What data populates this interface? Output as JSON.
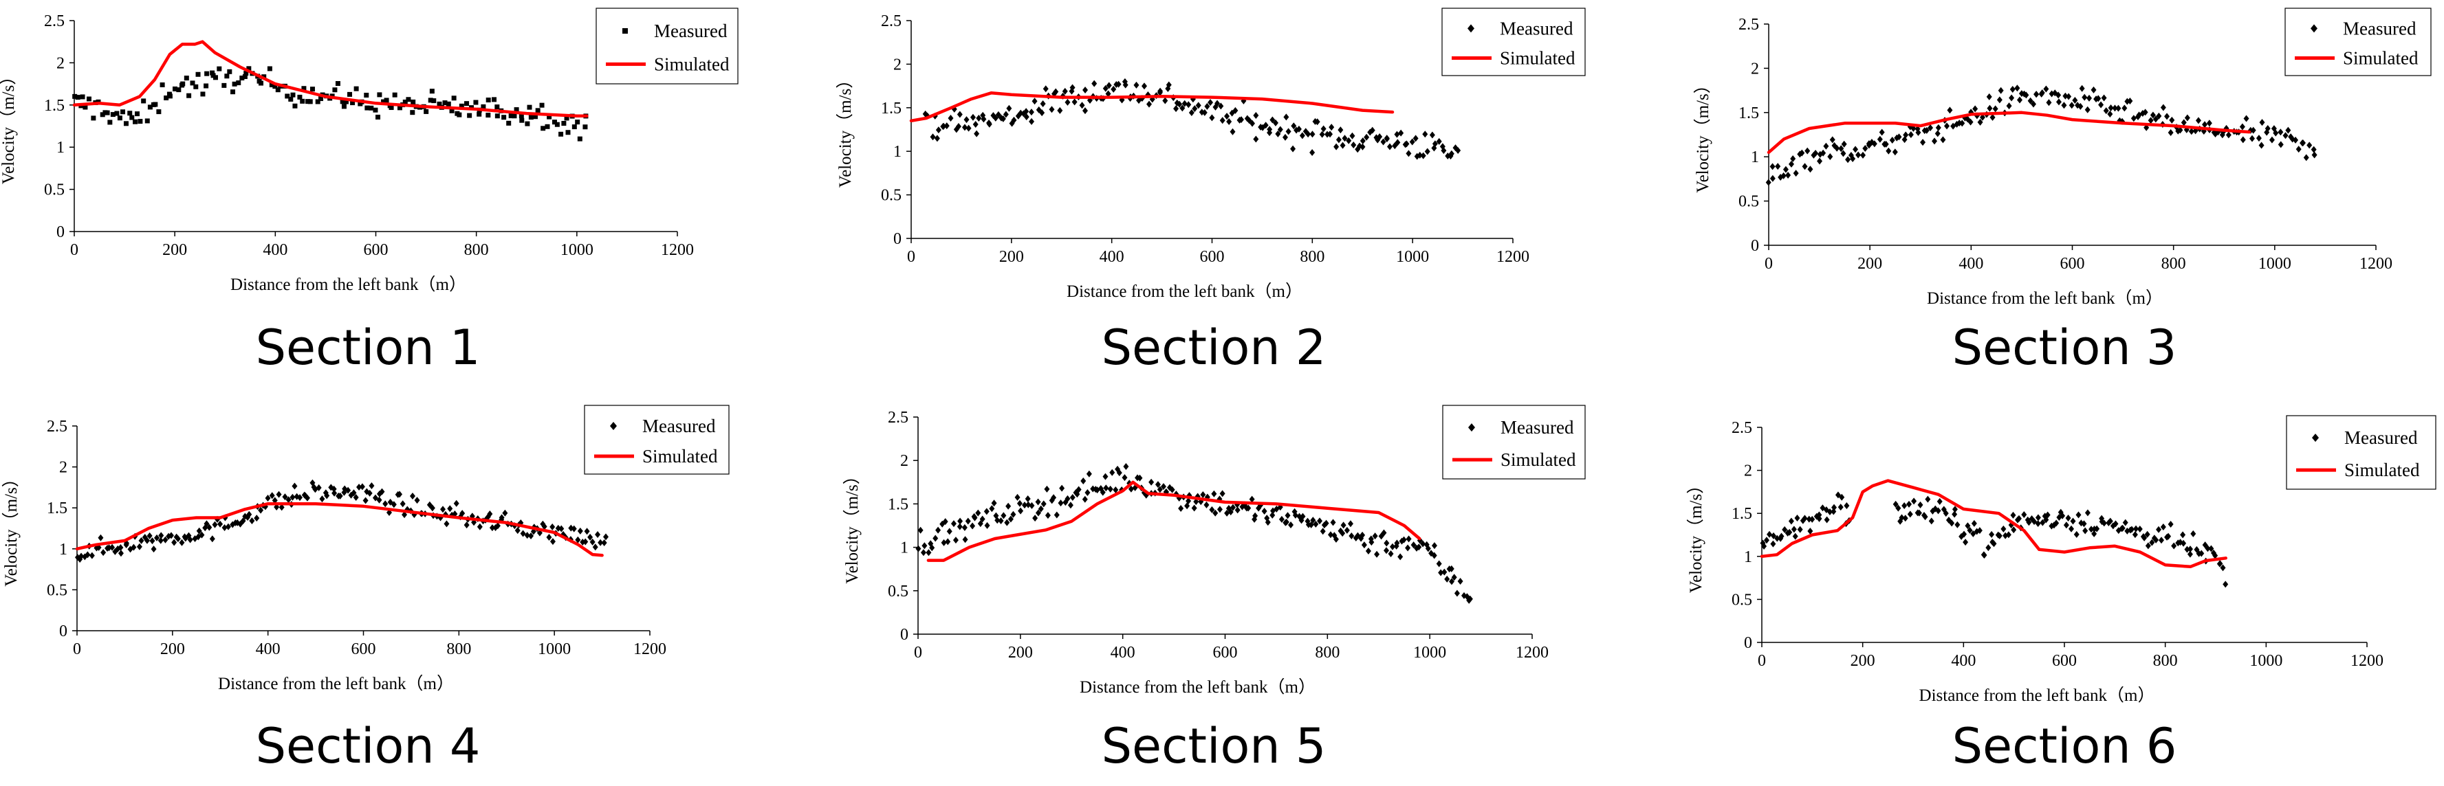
{
  "colors": {
    "measured": "#000000",
    "simulated": "#ff0000",
    "axis": "#000000",
    "background": "#ffffff"
  },
  "chart_data": [
    {
      "type": "scatter",
      "section_title": "Section 1",
      "xlabel": "Distance from the left bank（m）",
      "ylabel": "Velocity（m/s）",
      "xlim": [
        0,
        1200
      ],
      "ylim": [
        0,
        2.5
      ],
      "xticks": [
        "0",
        "200",
        "400",
        "600",
        "800",
        "1000",
        "1200"
      ],
      "yticks": [
        "0",
        "0.5",
        "1",
        "1.5",
        "2",
        "2.5"
      ],
      "legend": {
        "measured": "Measured",
        "simulated": "Simulated",
        "position": "top-right"
      },
      "measured_marker": "square",
      "measured_extent": [
        0,
        1020
      ],
      "measured_trend": [
        [
          0,
          1.52
        ],
        [
          60,
          1.45
        ],
        [
          110,
          1.3
        ],
        [
          150,
          1.4
        ],
        [
          190,
          1.72
        ],
        [
          260,
          1.75
        ],
        [
          330,
          1.85
        ],
        [
          450,
          1.65
        ],
        [
          600,
          1.52
        ],
        [
          800,
          1.45
        ],
        [
          950,
          1.38
        ],
        [
          1020,
          1.2
        ]
      ],
      "measured_spread": 0.13,
      "measured_count": 170,
      "simulated": [
        [
          0,
          1.5
        ],
        [
          50,
          1.52
        ],
        [
          90,
          1.5
        ],
        [
          130,
          1.6
        ],
        [
          160,
          1.8
        ],
        [
          190,
          2.1
        ],
        [
          215,
          2.22
        ],
        [
          240,
          2.22
        ],
        [
          255,
          2.25
        ],
        [
          280,
          2.12
        ],
        [
          330,
          1.95
        ],
        [
          400,
          1.75
        ],
        [
          500,
          1.6
        ],
        [
          600,
          1.52
        ],
        [
          700,
          1.48
        ],
        [
          800,
          1.45
        ],
        [
          900,
          1.4
        ],
        [
          1000,
          1.37
        ],
        [
          1020,
          1.37
        ]
      ]
    },
    {
      "type": "scatter",
      "section_title": "Section 2",
      "xlabel": "Distance from the left bank（m）",
      "ylabel": "Velocity（m/s）",
      "xlim": [
        0,
        1200
      ],
      "ylim": [
        0,
        2.5
      ],
      "xticks": [
        "0",
        "200",
        "400",
        "600",
        "800",
        "1000",
        "1200"
      ],
      "yticks": [
        "0",
        "0.5",
        "1",
        "1.5",
        "2",
        "2.5"
      ],
      "legend": {
        "measured": "Measured",
        "simulated": "Simulated",
        "position": "top-right"
      },
      "measured_marker": "diamond",
      "measured_extent": [
        30,
        1090
      ],
      "measured_trend": [
        [
          30,
          1.35
        ],
        [
          100,
          1.3
        ],
        [
          200,
          1.4
        ],
        [
          300,
          1.6
        ],
        [
          400,
          1.72
        ],
        [
          500,
          1.65
        ],
        [
          600,
          1.45
        ],
        [
          700,
          1.3
        ],
        [
          800,
          1.2
        ],
        [
          900,
          1.15
        ],
        [
          1000,
          1.1
        ],
        [
          1090,
          0.95
        ]
      ],
      "measured_spread": 0.14,
      "measured_count": 200,
      "simulated": [
        [
          0,
          1.35
        ],
        [
          30,
          1.38
        ],
        [
          80,
          1.5
        ],
        [
          120,
          1.6
        ],
        [
          160,
          1.67
        ],
        [
          200,
          1.65
        ],
        [
          300,
          1.62
        ],
        [
          400,
          1.62
        ],
        [
          500,
          1.63
        ],
        [
          600,
          1.62
        ],
        [
          700,
          1.6
        ],
        [
          800,
          1.55
        ],
        [
          900,
          1.47
        ],
        [
          960,
          1.45
        ]
      ]
    },
    {
      "type": "scatter",
      "section_title": "Section 3",
      "xlabel": "Distance from the left bank（m）",
      "ylabel": "Velocity（m/s）",
      "xlim": [
        0,
        1200
      ],
      "ylim": [
        0,
        2.5
      ],
      "xticks": [
        "0",
        "200",
        "400",
        "600",
        "800",
        "1000",
        "1200"
      ],
      "yticks": [
        "0",
        "0.5",
        "1",
        "1.5",
        "2",
        "2.5"
      ],
      "legend": {
        "measured": "Measured",
        "simulated": "Simulated",
        "position": "top-right"
      },
      "measured_marker": "diamond",
      "measured_extent": [
        0,
        1080
      ],
      "measured_trend": [
        [
          0,
          0.75
        ],
        [
          50,
          0.95
        ],
        [
          100,
          1.05
        ],
        [
          200,
          1.1
        ],
        [
          300,
          1.25
        ],
        [
          400,
          1.45
        ],
        [
          500,
          1.7
        ],
        [
          600,
          1.65
        ],
        [
          700,
          1.5
        ],
        [
          800,
          1.35
        ],
        [
          900,
          1.28
        ],
        [
          1000,
          1.22
        ],
        [
          1080,
          1.12
        ]
      ],
      "measured_spread": 0.12,
      "measured_count": 200,
      "simulated": [
        [
          0,
          1.05
        ],
        [
          30,
          1.2
        ],
        [
          80,
          1.32
        ],
        [
          150,
          1.38
        ],
        [
          250,
          1.38
        ],
        [
          300,
          1.35
        ],
        [
          350,
          1.42
        ],
        [
          400,
          1.48
        ],
        [
          500,
          1.5
        ],
        [
          550,
          1.47
        ],
        [
          600,
          1.42
        ],
        [
          650,
          1.4
        ],
        [
          700,
          1.38
        ],
        [
          800,
          1.35
        ],
        [
          900,
          1.3
        ],
        [
          950,
          1.28
        ]
      ]
    },
    {
      "type": "scatter",
      "section_title": "Section 4",
      "xlabel": "Distance from the left bank（m）",
      "ylabel": "Velocity（m/s）",
      "xlim": [
        0,
        1200
      ],
      "ylim": [
        0,
        2.5
      ],
      "xticks": [
        "0",
        "200",
        "400",
        "600",
        "800",
        "1000",
        "1200"
      ],
      "yticks": [
        "0",
        "0.5",
        "1",
        "1.5",
        "2",
        "2.5"
      ],
      "legend": {
        "measured": "Measured",
        "simulated": "Simulated",
        "position": "top-right"
      },
      "measured_marker": "diamond",
      "measured_extent": [
        0,
        1110
      ],
      "measured_trend": [
        [
          0,
          0.92
        ],
        [
          100,
          1.05
        ],
        [
          200,
          1.15
        ],
        [
          300,
          1.25
        ],
        [
          400,
          1.55
        ],
        [
          500,
          1.7
        ],
        [
          600,
          1.68
        ],
        [
          700,
          1.5
        ],
        [
          800,
          1.4
        ],
        [
          900,
          1.3
        ],
        [
          1000,
          1.2
        ],
        [
          1110,
          1.1
        ]
      ],
      "measured_spread": 0.1,
      "measured_count": 200,
      "simulated": [
        [
          0,
          1.0
        ],
        [
          40,
          1.05
        ],
        [
          100,
          1.1
        ],
        [
          150,
          1.25
        ],
        [
          200,
          1.35
        ],
        [
          250,
          1.38
        ],
        [
          300,
          1.38
        ],
        [
          350,
          1.48
        ],
        [
          400,
          1.55
        ],
        [
          500,
          1.55
        ],
        [
          600,
          1.52
        ],
        [
          700,
          1.45
        ],
        [
          800,
          1.38
        ],
        [
          900,
          1.32
        ],
        [
          1000,
          1.2
        ],
        [
          1050,
          1.05
        ],
        [
          1080,
          0.93
        ],
        [
          1100,
          0.92
        ]
      ]
    },
    {
      "type": "scatter",
      "section_title": "Section 5",
      "xlabel": "Distance from the left bank（m）",
      "ylabel": "Velocity（m/s）",
      "xlim": [
        0,
        1200
      ],
      "ylim": [
        0,
        2.5
      ],
      "xticks": [
        "0",
        "200",
        "400",
        "600",
        "800",
        "1000",
        "1200"
      ],
      "yticks": [
        "0",
        "0.5",
        "1",
        "1.5",
        "2",
        "2.5"
      ],
      "legend": {
        "measured": "Measured",
        "simulated": "Simulated",
        "position": "top-right"
      },
      "measured_marker": "diamond",
      "measured_extent": [
        0,
        1080
      ],
      "measured_trend": [
        [
          0,
          1.05
        ],
        [
          100,
          1.25
        ],
        [
          200,
          1.45
        ],
        [
          300,
          1.6
        ],
        [
          400,
          1.8
        ],
        [
          500,
          1.62
        ],
        [
          600,
          1.5
        ],
        [
          700,
          1.35
        ],
        [
          800,
          1.25
        ],
        [
          900,
          1.05
        ],
        [
          980,
          1.05
        ],
        [
          1020,
          0.8
        ],
        [
          1050,
          0.6
        ],
        [
          1080,
          0.4
        ]
      ],
      "measured_spread": 0.13,
      "measured_count": 220,
      "simulated": [
        [
          20,
          0.85
        ],
        [
          50,
          0.85
        ],
        [
          100,
          1.0
        ],
        [
          150,
          1.1
        ],
        [
          200,
          1.15
        ],
        [
          250,
          1.2
        ],
        [
          300,
          1.3
        ],
        [
          350,
          1.5
        ],
        [
          400,
          1.65
        ],
        [
          420,
          1.75
        ],
        [
          450,
          1.62
        ],
        [
          500,
          1.6
        ],
        [
          600,
          1.52
        ],
        [
          700,
          1.5
        ],
        [
          800,
          1.45
        ],
        [
          900,
          1.4
        ],
        [
          950,
          1.25
        ],
        [
          980,
          1.1
        ]
      ]
    },
    {
      "type": "scatter",
      "section_title": "Section 6",
      "xlabel": "Distance from the left bank（m）",
      "ylabel": "Velocity（m/s）",
      "xlim": [
        0,
        1200
      ],
      "ylim": [
        0,
        2.5
      ],
      "xticks": [
        "0",
        "200",
        "400",
        "600",
        "800",
        "1000",
        "1200"
      ],
      "yticks": [
        "0",
        "0.5",
        "1",
        "1.5",
        "2",
        "2.5"
      ],
      "legend": {
        "measured": "Measured",
        "simulated": "Simulated",
        "position": "top-right"
      },
      "measured_marker": "diamond",
      "measured_extent": [
        0,
        920
      ],
      "measured_gap": [
        175,
        265
      ],
      "measured_trend": [
        [
          0,
          1.2
        ],
        [
          80,
          1.35
        ],
        [
          150,
          1.6
        ],
        [
          175,
          1.5
        ],
        [
          265,
          1.55
        ],
        [
          350,
          1.5
        ],
        [
          420,
          1.3
        ],
        [
          450,
          1.1
        ],
        [
          500,
          1.4
        ],
        [
          600,
          1.45
        ],
        [
          700,
          1.35
        ],
        [
          800,
          1.2
        ],
        [
          900,
          1.0
        ],
        [
          920,
          0.7
        ]
      ],
      "measured_spread": 0.12,
      "measured_count": 190,
      "simulated": [
        [
          0,
          1.0
        ],
        [
          30,
          1.02
        ],
        [
          60,
          1.15
        ],
        [
          100,
          1.25
        ],
        [
          150,
          1.3
        ],
        [
          180,
          1.45
        ],
        [
          200,
          1.75
        ],
        [
          220,
          1.82
        ],
        [
          250,
          1.88
        ],
        [
          300,
          1.8
        ],
        [
          350,
          1.72
        ],
        [
          400,
          1.55
        ],
        [
          470,
          1.5
        ],
        [
          520,
          1.3
        ],
        [
          550,
          1.08
        ],
        [
          600,
          1.05
        ],
        [
          650,
          1.1
        ],
        [
          700,
          1.12
        ],
        [
          750,
          1.05
        ],
        [
          800,
          0.9
        ],
        [
          850,
          0.88
        ],
        [
          880,
          0.95
        ],
        [
          920,
          0.98
        ]
      ]
    }
  ]
}
